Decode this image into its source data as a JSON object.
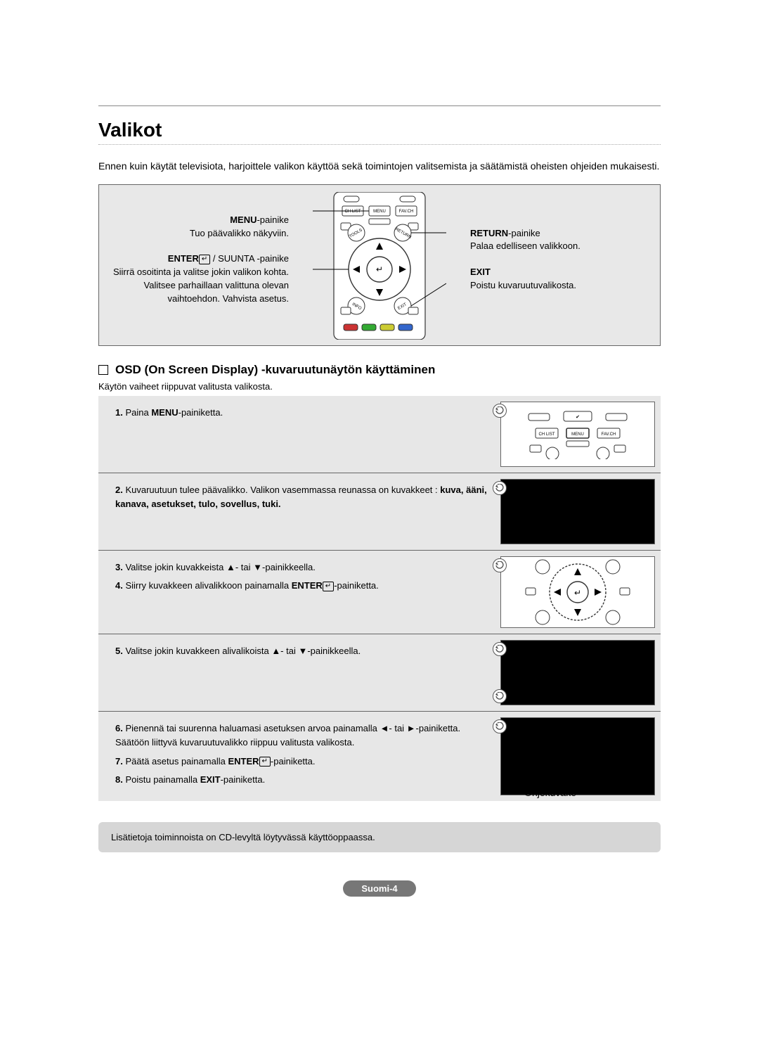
{
  "page": {
    "section_title": "Valikot",
    "intro": "Ennen kuin käytät televisiota, harjoittele valikon käyttöä sekä toimintojen valitsemista ja säätämistä oheisten ohjeiden mukaisesti.",
    "language_page": "Suomi-4"
  },
  "callouts": {
    "menu": {
      "title": "MENU",
      "suffix": "-painike",
      "desc": "Tuo päävalikko näkyviin."
    },
    "enter": {
      "title": "ENTER",
      "title_suffix": " / SUUNTA -painike",
      "desc": "Siirrä osoitinta ja valitse jokin valikon kohta. Valitsee parhaillaan valittuna olevan vaihtoehdon. Vahvista asetus."
    },
    "return": {
      "title": "RETURN",
      "suffix": "-painike",
      "desc": "Palaa edelliseen valikkoon."
    },
    "exit": {
      "title": "EXIT",
      "desc": "Poistu kuvaruutuvalikosta."
    }
  },
  "remote_labels": {
    "chlist": "CH LIST",
    "menu": "MENU",
    "favch": "FAV.CH",
    "tools": "TOOLS",
    "return": "RETURN",
    "info": "INFO",
    "exit": "EXIT"
  },
  "osd": {
    "heading": "OSD (On Screen Display) -kuvaruutunäytön käyttäminen",
    "sub_intro": "Käytön vaiheet riippuvat valitusta valikosta.",
    "steps": [
      {
        "items": [
          {
            "n": "1.",
            "text_before": "Paina ",
            "bold": "MENU",
            "text_after": "-painiketta."
          }
        ],
        "illus": "remote_top"
      },
      {
        "items": [
          {
            "n": "2.",
            "text_before": "Kuvaruutuun tulee päävalikko. Valikon vasemmassa reunassa on kuvakkeet : ",
            "bold": "kuva, ääni, kanava, asetukset, tulo, sovellus, tuki.",
            "text_after": ""
          }
        ],
        "illus": "dark"
      },
      {
        "items": [
          {
            "n": "3.",
            "text_before": "Valitse jokin kuvakkeista ▲- tai ▼-painikkeella.",
            "bold": "",
            "text_after": ""
          },
          {
            "n": "4.",
            "text_before": "Siirry kuvakkeen alivalikkoon painamalla ",
            "bold": "ENTER",
            "icon": true,
            "text_after": "-painiketta."
          }
        ],
        "illus": "dpad"
      },
      {
        "items": [
          {
            "n": "5.",
            "text_before": "Valitse jokin kuvakkeen alivalikoista ▲- tai ▼-painikkeella.",
            "bold": "",
            "text_after": ""
          }
        ],
        "illus": "dark"
      },
      {
        "items": [
          {
            "n": "6.",
            "text_before": "Pienennä tai suurenna haluamasi asetuksen arvoa painamalla ◄- tai ►-painiketta. Säätöön liittyvä kuvaruutuvalikko riippuu valitusta valikosta.",
            "bold": "",
            "text_after": ""
          },
          {
            "n": "7.",
            "text_before": "Päätä asetus painamalla  ",
            "bold": "ENTER",
            "icon": true,
            "text_after": "-painiketta."
          },
          {
            "n": "8.",
            "text_before": "Poistu painamalla ",
            "bold": "EXIT",
            "text_after": "-painiketta."
          }
        ],
        "illus": "dark",
        "ohje": true
      }
    ],
    "ohje_label": "Ohjekuvake"
  },
  "cd_note": "Lisätietoja toiminnoista on CD-levyltä löytyvässä käyttöoppaassa.",
  "colors": {
    "panel_bg": "#e7e7e7",
    "border": "#666666",
    "pill_bg": "#777777",
    "text": "#000000"
  }
}
